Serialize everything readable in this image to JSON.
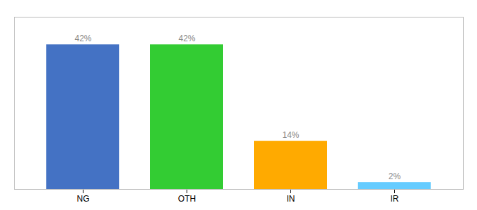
{
  "chart_data": {
    "type": "bar",
    "categories": [
      "NG",
      "OTH",
      "IN",
      "IR"
    ],
    "values": [
      42,
      42,
      14,
      2
    ],
    "value_labels": [
      "42%",
      "42%",
      "14%",
      "2%"
    ],
    "colors": [
      "#4472c4",
      "#33cc33",
      "#ffaa00",
      "#66ccff"
    ],
    "data_labels": true,
    "ylim": [
      0,
      50
    ],
    "tick_labels": "x"
  }
}
